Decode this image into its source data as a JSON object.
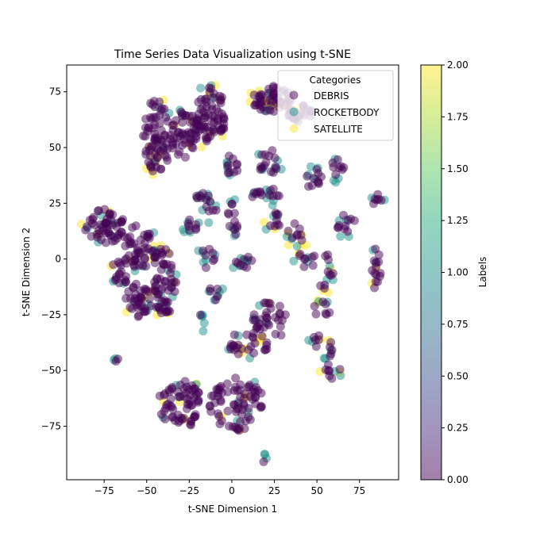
{
  "chart_data": {
    "type": "scatter",
    "title": "Time Series Data Visualization using t-SNE",
    "xlabel": "t-SNE Dimension 1",
    "ylabel": "t-SNE Dimension 2",
    "xlim": [
      -97,
      98
    ],
    "ylim": [
      -99,
      87
    ],
    "xticks": [
      -75,
      -50,
      -25,
      0,
      25,
      50,
      75
    ],
    "yticks": [
      -75,
      -50,
      -25,
      0,
      25,
      50,
      75
    ],
    "xtick_labels": [
      "−75",
      "−50",
      "−25",
      "0",
      "25",
      "50",
      "75"
    ],
    "ytick_labels": [
      "−75",
      "−50",
      "−25",
      "0",
      "25",
      "50",
      "75"
    ],
    "grid": false,
    "legend": {
      "title": "Categories",
      "placement": "top-right",
      "entries": [
        "DEBRIS",
        "ROCKETBODY",
        "SATELLITE"
      ]
    },
    "colorbar": {
      "label": "Labels",
      "range": [
        0,
        2
      ],
      "ticks": [
        0.0,
        0.25,
        0.5,
        0.75,
        1.0,
        1.25,
        1.5,
        1.75,
        2.0
      ],
      "tick_labels": [
        "0.00",
        "0.25",
        "0.50",
        "0.75",
        "1.00",
        "1.25",
        "1.50",
        "1.75",
        "2.00"
      ]
    },
    "colors": {
      "DEBRIS": "#440154",
      "ROCKETBODY": "#21918c",
      "SATELLITE": "#fde725"
    },
    "series": [
      {
        "name": "DEBRIS",
        "label_value": 0
      },
      {
        "name": "ROCKETBODY",
        "label_value": 1
      },
      {
        "name": "SATELLITE",
        "label_value": 2
      }
    ],
    "clusters": [
      {
        "cx": -44,
        "cy": 55,
        "rx": 8,
        "ry": 17,
        "pts": 80,
        "mix": [
          0.85,
          0.05,
          0.1
        ]
      },
      {
        "cx": -12,
        "cy": 65,
        "rx": 9,
        "ry": 13,
        "pts": 70,
        "mix": [
          0.88,
          0.05,
          0.07
        ]
      },
      {
        "cx": -27,
        "cy": 56,
        "rx": 10,
        "ry": 11,
        "pts": 60,
        "mix": [
          0.9,
          0.04,
          0.06
        ]
      },
      {
        "cx": 23,
        "cy": 72,
        "rx": 12,
        "ry": 6,
        "pts": 60,
        "mix": [
          0.8,
          0.05,
          0.15
        ]
      },
      {
        "cx": 40,
        "cy": 65,
        "rx": 8,
        "ry": 4,
        "pts": 30,
        "mix": [
          0.7,
          0.05,
          0.25
        ]
      },
      {
        "cx": 0,
        "cy": 42,
        "rx": 4,
        "ry": 5,
        "pts": 14,
        "mix": [
          0.7,
          0.3,
          0.0
        ]
      },
      {
        "cx": 22,
        "cy": 43,
        "rx": 7,
        "ry": 6,
        "pts": 20,
        "mix": [
          0.7,
          0.3,
          0.0
        ]
      },
      {
        "cx": 48,
        "cy": 36,
        "rx": 5,
        "ry": 5,
        "pts": 14,
        "mix": [
          0.7,
          0.3,
          0.0
        ]
      },
      {
        "cx": 62,
        "cy": 40,
        "rx": 4,
        "ry": 5,
        "pts": 12,
        "mix": [
          0.7,
          0.3,
          0.0
        ]
      },
      {
        "cx": -18,
        "cy": 29,
        "rx": 3,
        "ry": 3,
        "pts": 8,
        "mix": [
          0.6,
          0.4,
          0.0
        ]
      },
      {
        "cx": -13,
        "cy": 23,
        "rx": 4,
        "ry": 6,
        "pts": 12,
        "mix": [
          0.6,
          0.4,
          0.0
        ]
      },
      {
        "cx": 1,
        "cy": 18,
        "rx": 4,
        "ry": 8,
        "pts": 16,
        "mix": [
          0.7,
          0.3,
          0.0
        ]
      },
      {
        "cx": 20,
        "cy": 29,
        "rx": 9,
        "ry": 3,
        "pts": 18,
        "mix": [
          0.7,
          0.3,
          0.0
        ]
      },
      {
        "cx": 24,
        "cy": 18,
        "rx": 5,
        "ry": 6,
        "pts": 14,
        "mix": [
          0.6,
          0.25,
          0.15
        ]
      },
      {
        "cx": 37,
        "cy": 10,
        "rx": 5,
        "ry": 6,
        "pts": 14,
        "mix": [
          0.6,
          0.2,
          0.2
        ]
      },
      {
        "cx": -25,
        "cy": 15,
        "rx": 5,
        "ry": 4,
        "pts": 12,
        "mix": [
          0.6,
          0.4,
          0.0
        ]
      },
      {
        "cx": 67,
        "cy": 15,
        "rx": 6,
        "ry": 5,
        "pts": 14,
        "mix": [
          0.7,
          0.3,
          0.0
        ]
      },
      {
        "cx": 86,
        "cy": 27,
        "rx": 4,
        "ry": 3,
        "pts": 8,
        "mix": [
          0.7,
          0.3,
          0.0
        ]
      },
      {
        "cx": -75,
        "cy": 15,
        "rx": 12,
        "ry": 8,
        "pts": 60,
        "mix": [
          0.85,
          0.1,
          0.05
        ]
      },
      {
        "cx": -55,
        "cy": 5,
        "rx": 10,
        "ry": 10,
        "pts": 50,
        "mix": [
          0.85,
          0.1,
          0.05
        ]
      },
      {
        "cx": -40,
        "cy": -10,
        "rx": 8,
        "ry": 16,
        "pts": 70,
        "mix": [
          0.85,
          0.08,
          0.07
        ]
      },
      {
        "cx": -55,
        "cy": -20,
        "rx": 8,
        "ry": 9,
        "pts": 40,
        "mix": [
          0.85,
          0.08,
          0.07
        ]
      },
      {
        "cx": -65,
        "cy": -5,
        "rx": 6,
        "ry": 6,
        "pts": 20,
        "mix": [
          0.85,
          0.1,
          0.05
        ]
      },
      {
        "cx": -15,
        "cy": 1,
        "rx": 5,
        "ry": 5,
        "pts": 12,
        "mix": [
          0.6,
          0.4,
          0.0
        ]
      },
      {
        "cx": 6,
        "cy": -2,
        "rx": 7,
        "ry": 4,
        "pts": 14,
        "mix": [
          0.6,
          0.4,
          0.0
        ]
      },
      {
        "cx": -9,
        "cy": -15,
        "rx": 4,
        "ry": 5,
        "pts": 10,
        "mix": [
          0.5,
          0.5,
          0.0
        ]
      },
      {
        "cx": -18,
        "cy": -29,
        "rx": 3,
        "ry": 4,
        "pts": 6,
        "mix": [
          0.1,
          0.9,
          0.0
        ]
      },
      {
        "cx": -68,
        "cy": -46,
        "rx": 2,
        "ry": 2,
        "pts": 4,
        "mix": [
          0.5,
          0.5,
          0.0
        ]
      },
      {
        "cx": 43,
        "cy": 0,
        "rx": 6,
        "ry": 6,
        "pts": 14,
        "mix": [
          0.6,
          0.2,
          0.2
        ]
      },
      {
        "cx": 55,
        "cy": -5,
        "rx": 5,
        "ry": 9,
        "pts": 16,
        "mix": [
          0.6,
          0.2,
          0.2
        ]
      },
      {
        "cx": 85,
        "cy": -5,
        "rx": 3,
        "ry": 10,
        "pts": 18,
        "mix": [
          0.8,
          0.1,
          0.1
        ]
      },
      {
        "cx": 22,
        "cy": -28,
        "rx": 10,
        "ry": 10,
        "pts": 40,
        "mix": [
          0.8,
          0.1,
          0.1
        ]
      },
      {
        "cx": 10,
        "cy": -38,
        "rx": 12,
        "ry": 6,
        "pts": 30,
        "mix": [
          0.8,
          0.1,
          0.1
        ]
      },
      {
        "cx": 53,
        "cy": -22,
        "rx": 6,
        "ry": 4,
        "pts": 12,
        "mix": [
          0.6,
          0.2,
          0.2
        ]
      },
      {
        "cx": 52,
        "cy": -40,
        "rx": 8,
        "ry": 6,
        "pts": 16,
        "mix": [
          0.6,
          0.3,
          0.1
        ]
      },
      {
        "cx": 58,
        "cy": -50,
        "rx": 6,
        "ry": 4,
        "pts": 12,
        "mix": [
          0.6,
          0.2,
          0.2
        ]
      },
      {
        "cx": -30,
        "cy": -65,
        "rx": 13,
        "ry": 11,
        "pts": 70,
        "mix": [
          0.9,
          0.05,
          0.05
        ]
      },
      {
        "cx": 3,
        "cy": -65,
        "rx": 16,
        "ry": 12,
        "pts": 80,
        "mix": [
          0.9,
          0.05,
          0.05
        ]
      },
      {
        "cx": 19,
        "cy": -89,
        "rx": 2,
        "ry": 2,
        "pts": 4,
        "mix": [
          0.3,
          0.7,
          0.0
        ]
      }
    ]
  }
}
